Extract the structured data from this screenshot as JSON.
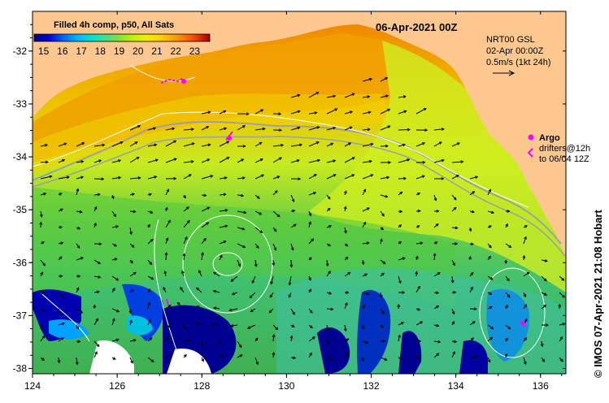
{
  "map": {
    "date_title": "06-Apr-2021 00Z",
    "colorbar": {
      "title": "Filled 4h comp, p50, All Sats",
      "ticks": [
        "15",
        "16",
        "17",
        "18",
        "19",
        "20",
        "21",
        "22",
        "23"
      ],
      "range": [
        14.5,
        23.8
      ],
      "colors": [
        "#000080",
        "#0000d0",
        "#0060ff",
        "#00b0ff",
        "#00e0d0",
        "#40e090",
        "#80e040",
        "#c0f000",
        "#f0f000",
        "#ffd000",
        "#ff9000",
        "#ff5000",
        "#e02000",
        "#a00000"
      ]
    },
    "current_legend": {
      "line1": "NRT00 GSL",
      "line2": "02-Apr 00:00Z",
      "line3": "0.5m/s (1kt 24h)"
    },
    "argo_legend": {
      "title": "Argo",
      "line1": "drifters@12h",
      "line2": "to 06/04 12Z"
    },
    "credit": "© IMOS 07-Apr-2021 21:08 Hobart",
    "x_ticks": [
      "124",
      "126",
      "128",
      "130",
      "132",
      "134",
      "136"
    ],
    "y_ticks": [
      "-32",
      "-33",
      "-34",
      "-35",
      "-36",
      "-37",
      "-38"
    ],
    "colors": {
      "land": "#fdc890",
      "warm": "#f08000",
      "mid": "#c8ea20",
      "cool": "#40c060",
      "cold": "#000080",
      "argo": "#ff00ff"
    }
  }
}
